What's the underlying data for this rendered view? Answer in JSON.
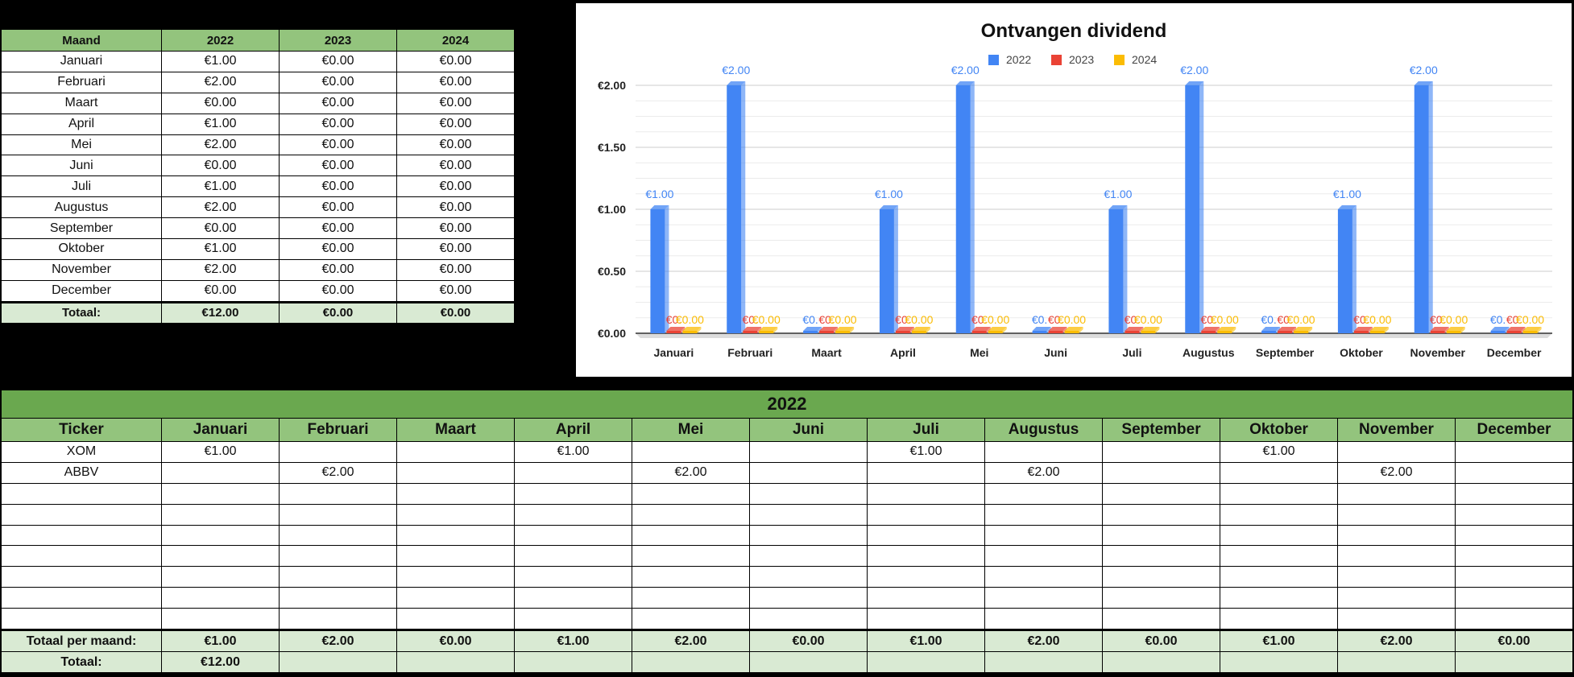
{
  "summary_table": {
    "headers": [
      "Maand",
      "2022",
      "2023",
      "2024"
    ],
    "rows": [
      [
        "Januari",
        "€1.00",
        "€0.00",
        "€0.00"
      ],
      [
        "Februari",
        "€2.00",
        "€0.00",
        "€0.00"
      ],
      [
        "Maart",
        "€0.00",
        "€0.00",
        "€0.00"
      ],
      [
        "April",
        "€1.00",
        "€0.00",
        "€0.00"
      ],
      [
        "Mei",
        "€2.00",
        "€0.00",
        "€0.00"
      ],
      [
        "Juni",
        "€0.00",
        "€0.00",
        "€0.00"
      ],
      [
        "Juli",
        "€1.00",
        "€0.00",
        "€0.00"
      ],
      [
        "Augustus",
        "€2.00",
        "€0.00",
        "€0.00"
      ],
      [
        "September",
        "€0.00",
        "€0.00",
        "€0.00"
      ],
      [
        "Oktober",
        "€1.00",
        "€0.00",
        "€0.00"
      ],
      [
        "November",
        "€2.00",
        "€0.00",
        "€0.00"
      ],
      [
        "December",
        "€0.00",
        "€0.00",
        "€0.00"
      ]
    ],
    "total": [
      "Totaal:",
      "€12.00",
      "€0.00",
      "€0.00"
    ]
  },
  "chart_data": {
    "type": "bar",
    "title": "Ontvangen dividend",
    "categories": [
      "Januari",
      "Februari",
      "Maart",
      "April",
      "Mei",
      "Juni",
      "Juli",
      "Augustus",
      "September",
      "Oktober",
      "November",
      "December"
    ],
    "series": [
      {
        "name": "2022",
        "color": "#4285f4",
        "values": [
          1,
          2,
          0,
          1,
          2,
          0,
          1,
          2,
          0,
          1,
          2,
          0
        ]
      },
      {
        "name": "2023",
        "color": "#ea4335",
        "values": [
          0,
          0,
          0,
          0,
          0,
          0,
          0,
          0,
          0,
          0,
          0,
          0
        ]
      },
      {
        "name": "2024",
        "color": "#fbbc04",
        "values": [
          0,
          0,
          0,
          0,
          0,
          0,
          0,
          0,
          0,
          0,
          0,
          0
        ]
      }
    ],
    "ylim": [
      0,
      2
    ],
    "yticks": [
      "€0.00",
      "€0.50",
      "€1.00",
      "€1.50",
      "€2.00"
    ],
    "ytick_values": [
      0,
      0.5,
      1,
      1.5,
      2
    ],
    "legend_position": "top",
    "grid": true,
    "data_labels": {
      "2022": [
        "€1.00",
        "€2.00",
        "€0.",
        "€1.00",
        "€2.00",
        "€0.",
        "€1.00",
        "€2.00",
        "€0.",
        "€1.00",
        "€2.00",
        "€0."
      ],
      "2023": [
        "€0.",
        "€0.",
        "€0.",
        "€0.",
        "€0.",
        "€0.",
        "€0.",
        "€0.",
        "€0.",
        "€0.",
        "€0.",
        "€0."
      ],
      "2024": [
        "€0.00",
        "€0.00",
        "€0.00",
        "€0.00",
        "€0.00",
        "€0.00",
        "€0.00",
        "€0.00",
        "€0.00",
        "€0.00",
        "€0.00",
        "€0.00"
      ]
    },
    "xlabel": "",
    "ylabel": ""
  },
  "year_table": {
    "title": "2022",
    "headers": [
      "Ticker",
      "Januari",
      "Februari",
      "Maart",
      "April",
      "Mei",
      "Juni",
      "Juli",
      "Augustus",
      "September",
      "Oktober",
      "November",
      "December"
    ],
    "rows": [
      [
        "XOM",
        "€1.00",
        "",
        "",
        "€1.00",
        "",
        "",
        "€1.00",
        "",
        "",
        "€1.00",
        "",
        ""
      ],
      [
        "ABBV",
        "",
        "€2.00",
        "",
        "",
        "€2.00",
        "",
        "",
        "€2.00",
        "",
        "",
        "€2.00",
        ""
      ],
      [
        "",
        "",
        "",
        "",
        "",
        "",
        "",
        "",
        "",
        "",
        "",
        "",
        ""
      ],
      [
        "",
        "",
        "",
        "",
        "",
        "",
        "",
        "",
        "",
        "",
        "",
        "",
        ""
      ],
      [
        "",
        "",
        "",
        "",
        "",
        "",
        "",
        "",
        "",
        "",
        "",
        "",
        ""
      ],
      [
        "",
        "",
        "",
        "",
        "",
        "",
        "",
        "",
        "",
        "",
        "",
        "",
        ""
      ],
      [
        "",
        "",
        "",
        "",
        "",
        "",
        "",
        "",
        "",
        "",
        "",
        "",
        ""
      ],
      [
        "",
        "",
        "",
        "",
        "",
        "",
        "",
        "",
        "",
        "",
        "",
        "",
        ""
      ],
      [
        "",
        "",
        "",
        "",
        "",
        "",
        "",
        "",
        "",
        "",
        "",
        "",
        ""
      ]
    ],
    "monthly_total": [
      "Totaal per maand:",
      "€1.00",
      "€2.00",
      "€0.00",
      "€1.00",
      "€2.00",
      "€0.00",
      "€1.00",
      "€2.00",
      "€0.00",
      "€1.00",
      "€2.00",
      "€0.00"
    ],
    "grand_total": [
      "Totaal:",
      "€12.00"
    ]
  }
}
